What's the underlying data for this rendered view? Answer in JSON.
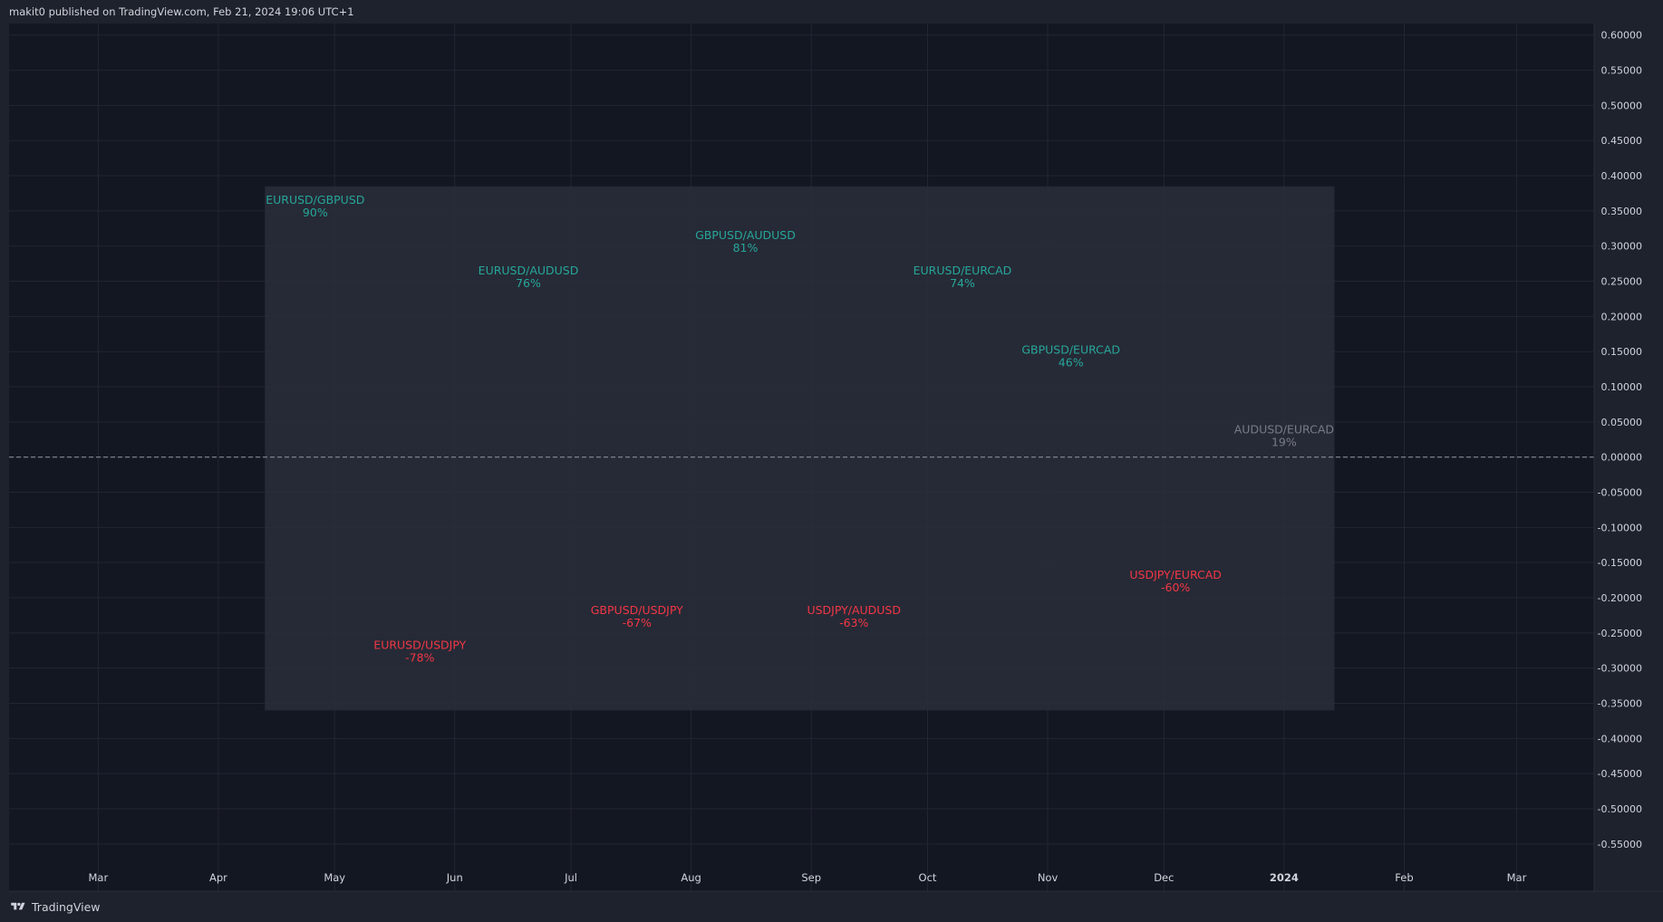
{
  "header": {
    "published_line": "makit0 published on TradingView.com, Feb 21, 2024 19:06 UTC+1"
  },
  "footer": {
    "brand_label": "TradingView",
    "logo_icon": "tradingview-logo-icon"
  },
  "colors": {
    "background": "#1e222d",
    "plot_background": "#131722",
    "grid": "#232632",
    "box_fill": "#2a2e39",
    "positive": "#26a69a",
    "negative": "#f23645",
    "neutral": "#787b86",
    "axis_text": "#d1d4dc"
  },
  "chart_data": {
    "type": "scatter",
    "title": "",
    "xlabel": "",
    "ylabel": "",
    "x_ticks": [
      "Mar",
      "Apr",
      "May",
      "Jun",
      "Jul",
      "Aug",
      "Sep",
      "Oct",
      "Nov",
      "Dec",
      "2024",
      "Feb",
      "Mar"
    ],
    "x_tick_dates": [
      "2023-03-01",
      "2023-04-01",
      "2023-05-01",
      "2023-06-01",
      "2023-07-01",
      "2023-08-01",
      "2023-09-01",
      "2023-10-01",
      "2023-11-01",
      "2023-12-01",
      "2024-01-01",
      "2024-02-01",
      "2024-03-01"
    ],
    "bold_ticks": [
      "2024"
    ],
    "xlim": [
      "2023-02-06",
      "2024-03-21"
    ],
    "y_ticks": [
      "0.60000",
      "0.55000",
      "0.50000",
      "0.45000",
      "0.40000",
      "0.35000",
      "0.30000",
      "0.25000",
      "0.20000",
      "0.15000",
      "0.10000",
      "0.05000",
      "0.00000",
      "-0.05000",
      "-0.10000",
      "-0.15000",
      "-0.20000",
      "-0.25000",
      "-0.30000",
      "-0.35000",
      "-0.40000",
      "-0.45000",
      "-0.50000",
      "-0.55000"
    ],
    "ylim": [
      -0.6172,
      0.6164
    ],
    "zero_line": 0.0,
    "box": {
      "x_start": "2023-04-13",
      "x_end": "2024-01-14",
      "y_top": 0.385,
      "y_bottom": -0.36
    },
    "grid": true,
    "labels": [
      {
        "pair": "EURUSD/GBPUSD",
        "pct": "90%",
        "x": "2023-04-26",
        "y": 0.36,
        "sign": "positive"
      },
      {
        "pair": "EURUSD/AUDUSD",
        "pct": "76%",
        "x": "2023-06-20",
        "y": 0.26,
        "sign": "positive"
      },
      {
        "pair": "GBPUSD/AUDUSD",
        "pct": "81%",
        "x": "2023-08-15",
        "y": 0.31,
        "sign": "positive"
      },
      {
        "pair": "EURUSD/EURCAD",
        "pct": "74%",
        "x": "2023-10-10",
        "y": 0.26,
        "sign": "positive"
      },
      {
        "pair": "GBPUSD/EURCAD",
        "pct": "46%",
        "x": "2023-11-07",
        "y": 0.147,
        "sign": "positive"
      },
      {
        "pair": "AUDUSD/EURCAD",
        "pct": "19%",
        "x": "2024-01-01",
        "y": 0.034,
        "sign": "neutral"
      },
      {
        "pair": "EURUSD/USDJPY",
        "pct": "-78%",
        "x": "2023-05-23",
        "y": -0.273,
        "sign": "negative"
      },
      {
        "pair": "GBPUSD/USDJPY",
        "pct": "-67%",
        "x": "2023-07-18",
        "y": -0.223,
        "sign": "negative"
      },
      {
        "pair": "USDJPY/AUDUSD",
        "pct": "-63%",
        "x": "2023-09-12",
        "y": -0.223,
        "sign": "negative"
      },
      {
        "pair": "USDJPY/EURCAD",
        "pct": "-60%",
        "x": "2023-12-04",
        "y": -0.173,
        "sign": "negative"
      }
    ]
  }
}
